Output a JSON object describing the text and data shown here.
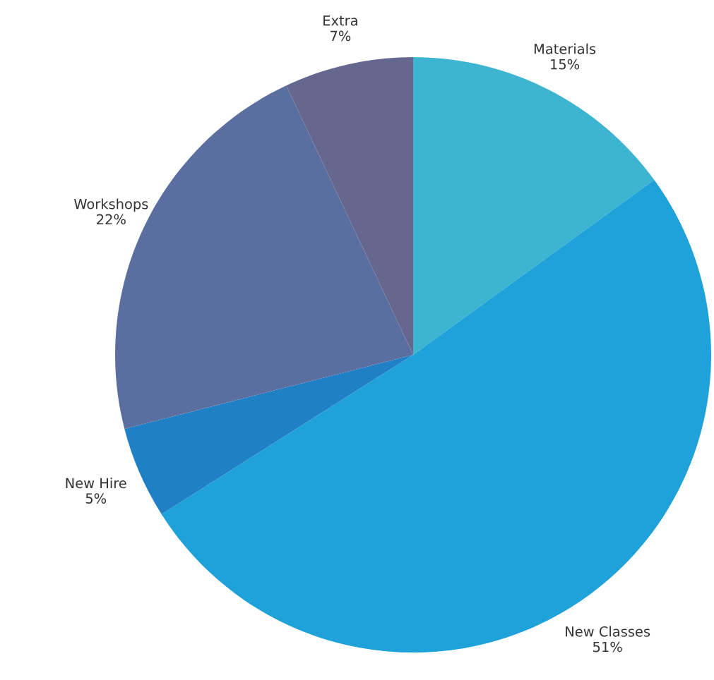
{
  "chart_data": {
    "type": "pie",
    "categories": [
      "Materials",
      "New Classes",
      "New Hire",
      "Workshops",
      "Extra"
    ],
    "values": [
      15,
      51,
      5,
      22,
      7
    ],
    "value_labels": [
      "15%",
      "51%",
      "5%",
      "22%",
      "7%"
    ],
    "colors": [
      "#3db4d0",
      "#1fa1d9",
      "#1f80c6",
      "#5a6f9f",
      "#66678f"
    ]
  }
}
